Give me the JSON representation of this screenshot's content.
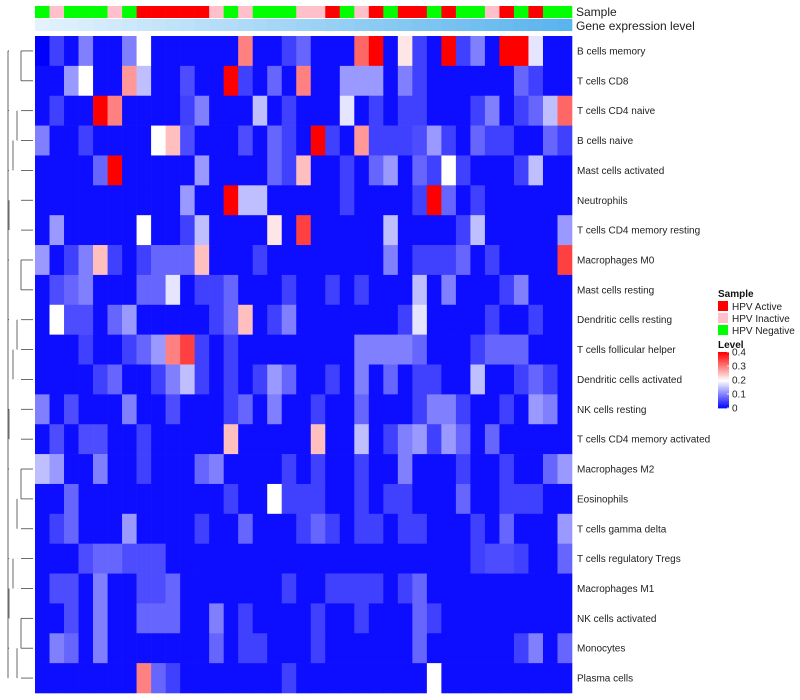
{
  "chart_data": {
    "type": "heatmap",
    "title": "",
    "annotation_tracks": [
      "Sample",
      "Gene expression level"
    ],
    "rows": [
      "B cells memory",
      "T cells CD8",
      "T cells CD4 naive",
      "B cells naive",
      "Mast cells activated",
      "Neutrophils",
      "T cells CD4 memory resting",
      "Macrophages M0",
      "Mast cells resting",
      "Dendritic cells resting",
      "T cells follicular helper",
      "Dendritic cells activated",
      "NK cells resting",
      "T cells CD4 memory activated",
      "Macrophages M2",
      "Eosinophils",
      "T cells gamma delta",
      "T cells regulatory  Tregs",
      "Macrophages M1",
      "NK cells activated",
      "Monocytes",
      "Plasma cells"
    ],
    "sample_groups": [
      "HPV Negative",
      "HPV Inactive",
      "HPV Negative",
      "HPV Negative",
      "HPV Negative",
      "HPV Inactive",
      "HPV Negative",
      "HPV Active",
      "HPV Active",
      "HPV Active",
      "HPV Active",
      "HPV Active",
      "HPV Inactive",
      "HPV Negative",
      "HPV Inactive",
      "HPV Negative",
      "HPV Negative",
      "HPV Negative",
      "HPV Inactive",
      "HPV Inactive",
      "HPV Active",
      "HPV Negative",
      "HPV Inactive",
      "HPV Active",
      "HPV Negative",
      "HPV Active",
      "HPV Active",
      "HPV Negative",
      "HPV Active",
      "HPV Negative",
      "HPV Negative",
      "HPV Inactive",
      "HPV Active",
      "HPV Negative",
      "HPV Active",
      "HPV Negative",
      "HPV Negative"
    ],
    "expression_gradient": [
      "#e3f2fd",
      "#5ab4ee"
    ],
    "values": [
      [
        0.0,
        0.05,
        0.01,
        0.1,
        0.01,
        0.01,
        0.1,
        0.2,
        0.01,
        0.01,
        0.01,
        0.01,
        0.01,
        0.01,
        0.3,
        0.01,
        0.01,
        0.05,
        0.08,
        0.01,
        0.01,
        0.01,
        0.32,
        0.4,
        0.01,
        0.22,
        0.05,
        0.01,
        0.4,
        0.05,
        0.1,
        0.01,
        0.4,
        0.4,
        0.18,
        0.01,
        0.01
      ],
      [
        0.01,
        0.01,
        0.12,
        0.2,
        0.01,
        0.01,
        0.28,
        0.15,
        0.01,
        0.01,
        0.06,
        0.01,
        0.01,
        0.4,
        0.05,
        0.01,
        0.08,
        0.01,
        0.3,
        0.01,
        0.01,
        0.12,
        0.12,
        0.12,
        0.01,
        0.1,
        0.05,
        0.01,
        0.01,
        0.01,
        0.01,
        0.01,
        0.01,
        0.08,
        0.05,
        0.01,
        0.01
      ],
      [
        0.01,
        0.05,
        0.01,
        0.01,
        0.4,
        0.3,
        0.01,
        0.01,
        0.01,
        0.01,
        0.05,
        0.1,
        0.01,
        0.01,
        0.01,
        0.15,
        0.01,
        0.05,
        0.01,
        0.01,
        0.01,
        0.18,
        0.01,
        0.05,
        0.01,
        0.05,
        0.05,
        0.01,
        0.01,
        0.01,
        0.05,
        0.1,
        0.01,
        0.05,
        0.08,
        0.15,
        0.32
      ],
      [
        0.1,
        0.01,
        0.01,
        0.05,
        0.01,
        0.01,
        0.01,
        0.01,
        0.2,
        0.25,
        0.06,
        0.01,
        0.01,
        0.01,
        0.06,
        0.01,
        0.08,
        0.05,
        0.01,
        0.4,
        0.05,
        0.01,
        0.28,
        0.05,
        0.05,
        0.05,
        0.06,
        0.12,
        0.05,
        0.01,
        0.08,
        0.05,
        0.05,
        0.01,
        0.01,
        0.08,
        0.05
      ],
      [
        0.01,
        0.01,
        0.01,
        0.01,
        0.08,
        0.4,
        0.01,
        0.01,
        0.01,
        0.01,
        0.01,
        0.12,
        0.01,
        0.01,
        0.01,
        0.01,
        0.08,
        0.05,
        0.25,
        0.01,
        0.01,
        0.05,
        0.01,
        0.08,
        0.12,
        0.01,
        0.08,
        0.05,
        0.2,
        0.05,
        0.01,
        0.01,
        0.01,
        0.05,
        0.15,
        0.01,
        0.01
      ],
      [
        0.01,
        0.01,
        0.01,
        0.01,
        0.01,
        0.01,
        0.01,
        0.01,
        0.01,
        0.01,
        0.12,
        0.01,
        0.01,
        0.4,
        0.15,
        0.15,
        0.01,
        0.01,
        0.01,
        0.01,
        0.01,
        0.05,
        0.01,
        0.01,
        0.01,
        0.01,
        0.05,
        0.4,
        0.08,
        0.01,
        0.05,
        0.01,
        0.01,
        0.01,
        0.01,
        0.01,
        0.01
      ],
      [
        0.01,
        0.12,
        0.01,
        0.01,
        0.01,
        0.01,
        0.01,
        0.2,
        0.01,
        0.01,
        0.05,
        0.15,
        0.01,
        0.01,
        0.01,
        0.01,
        0.22,
        0.01,
        0.35,
        0.01,
        0.01,
        0.01,
        0.01,
        0.01,
        0.15,
        0.01,
        0.01,
        0.01,
        0.01,
        0.05,
        0.15,
        0.01,
        0.01,
        0.01,
        0.01,
        0.01,
        0.12
      ],
      [
        0.12,
        0.01,
        0.05,
        0.1,
        0.25,
        0.05,
        0.01,
        0.05,
        0.08,
        0.08,
        0.08,
        0.25,
        0.01,
        0.01,
        0.01,
        0.05,
        0.01,
        0.01,
        0.01,
        0.01,
        0.01,
        0.01,
        0.01,
        0.01,
        0.1,
        0.01,
        0.05,
        0.05,
        0.05,
        0.08,
        0.01,
        0.05,
        0.01,
        0.01,
        0.01,
        0.01,
        0.35
      ],
      [
        0.01,
        0.06,
        0.08,
        0.1,
        0.01,
        0.01,
        0.01,
        0.08,
        0.08,
        0.18,
        0.01,
        0.05,
        0.05,
        0.08,
        0.01,
        0.01,
        0.01,
        0.05,
        0.01,
        0.01,
        0.05,
        0.01,
        0.05,
        0.01,
        0.01,
        0.01,
        0.15,
        0.01,
        0.1,
        0.01,
        0.01,
        0.01,
        0.05,
        0.1,
        0.01,
        0.01,
        0.01
      ],
      [
        0.01,
        0.2,
        0.06,
        0.06,
        0.01,
        0.08,
        0.12,
        0.01,
        0.01,
        0.01,
        0.01,
        0.01,
        0.05,
        0.08,
        0.25,
        0.01,
        0.05,
        0.1,
        0.01,
        0.01,
        0.01,
        0.01,
        0.01,
        0.01,
        0.01,
        0.05,
        0.18,
        0.01,
        0.01,
        0.01,
        0.01,
        0.05,
        0.01,
        0.01,
        0.05,
        0.01,
        0.01
      ],
      [
        0.01,
        0.01,
        0.01,
        0.05,
        0.01,
        0.01,
        0.05,
        0.08,
        0.12,
        0.3,
        0.35,
        0.05,
        0.01,
        0.05,
        0.01,
        0.01,
        0.01,
        0.01,
        0.01,
        0.01,
        0.01,
        0.01,
        0.1,
        0.1,
        0.1,
        0.1,
        0.08,
        0.01,
        0.01,
        0.01,
        0.05,
        0.08,
        0.08,
        0.08,
        0.01,
        0.01,
        0.01
      ],
      [
        0.01,
        0.01,
        0.01,
        0.01,
        0.05,
        0.08,
        0.01,
        0.01,
        0.05,
        0.1,
        0.15,
        0.05,
        0.01,
        0.05,
        0.01,
        0.05,
        0.12,
        0.08,
        0.01,
        0.01,
        0.05,
        0.01,
        0.1,
        0.01,
        0.08,
        0.01,
        0.05,
        0.05,
        0.01,
        0.01,
        0.15,
        0.01,
        0.01,
        0.05,
        0.08,
        0.05,
        0.01
      ],
      [
        0.1,
        0.01,
        0.06,
        0.01,
        0.01,
        0.01,
        0.1,
        0.01,
        0.01,
        0.06,
        0.01,
        0.01,
        0.01,
        0.05,
        0.08,
        0.01,
        0.1,
        0.01,
        0.01,
        0.05,
        0.01,
        0.01,
        0.08,
        0.01,
        0.01,
        0.01,
        0.05,
        0.1,
        0.1,
        0.05,
        0.01,
        0.01,
        0.05,
        0.01,
        0.12,
        0.1,
        0.01
      ],
      [
        0.01,
        0.06,
        0.01,
        0.06,
        0.06,
        0.01,
        0.01,
        0.05,
        0.01,
        0.01,
        0.01,
        0.01,
        0.01,
        0.25,
        0.01,
        0.01,
        0.01,
        0.01,
        0.01,
        0.25,
        0.01,
        0.01,
        0.15,
        0.01,
        0.05,
        0.1,
        0.12,
        0.05,
        0.12,
        0.08,
        0.01,
        0.08,
        0.01,
        0.01,
        0.01,
        0.01,
        0.01
      ],
      [
        0.15,
        0.12,
        0.01,
        0.01,
        0.1,
        0.01,
        0.01,
        0.05,
        0.01,
        0.01,
        0.01,
        0.08,
        0.1,
        0.01,
        0.01,
        0.01,
        0.01,
        0.05,
        0.01,
        0.05,
        0.01,
        0.01,
        0.05,
        0.01,
        0.01,
        0.1,
        0.01,
        0.01,
        0.01,
        0.05,
        0.01,
        0.01,
        0.05,
        0.01,
        0.01,
        0.08,
        0.12
      ],
      [
        0.01,
        0.01,
        0.08,
        0.01,
        0.01,
        0.01,
        0.01,
        0.01,
        0.01,
        0.01,
        0.01,
        0.01,
        0.01,
        0.05,
        0.01,
        0.01,
        0.2,
        0.05,
        0.05,
        0.05,
        0.01,
        0.01,
        0.05,
        0.01,
        0.05,
        0.05,
        0.01,
        0.01,
        0.01,
        0.08,
        0.01,
        0.01,
        0.05,
        0.05,
        0.05,
        0.01,
        0.01
      ],
      [
        0.01,
        0.05,
        0.08,
        0.01,
        0.01,
        0.01,
        0.12,
        0.01,
        0.01,
        0.01,
        0.01,
        0.05,
        0.01,
        0.01,
        0.08,
        0.01,
        0.01,
        0.01,
        0.05,
        0.08,
        0.05,
        0.01,
        0.05,
        0.05,
        0.01,
        0.05,
        0.05,
        0.01,
        0.01,
        0.01,
        0.05,
        0.01,
        0.08,
        0.01,
        0.01,
        0.01,
        0.12
      ],
      [
        0.01,
        0.01,
        0.01,
        0.06,
        0.08,
        0.08,
        0.06,
        0.06,
        0.06,
        0.01,
        0.01,
        0.01,
        0.01,
        0.01,
        0.01,
        0.01,
        0.01,
        0.01,
        0.01,
        0.01,
        0.01,
        0.01,
        0.01,
        0.01,
        0.01,
        0.01,
        0.01,
        0.01,
        0.01,
        0.01,
        0.05,
        0.06,
        0.06,
        0.05,
        0.01,
        0.01,
        0.08
      ],
      [
        0.01,
        0.06,
        0.06,
        0.01,
        0.1,
        0.01,
        0.01,
        0.06,
        0.06,
        0.08,
        0.01,
        0.01,
        0.01,
        0.01,
        0.01,
        0.01,
        0.01,
        0.05,
        0.01,
        0.01,
        0.05,
        0.05,
        0.05,
        0.05,
        0.01,
        0.05,
        0.08,
        0.01,
        0.01,
        0.01,
        0.01,
        0.01,
        0.01,
        0.01,
        0.01,
        0.01,
        0.01
      ],
      [
        0.01,
        0.01,
        0.06,
        0.01,
        0.1,
        0.01,
        0.01,
        0.08,
        0.08,
        0.08,
        0.01,
        0.01,
        0.1,
        0.01,
        0.05,
        0.01,
        0.01,
        0.01,
        0.01,
        0.05,
        0.01,
        0.01,
        0.05,
        0.01,
        0.01,
        0.01,
        0.08,
        0.05,
        0.01,
        0.01,
        0.01,
        0.01,
        0.01,
        0.01,
        0.01,
        0.01,
        0.01
      ],
      [
        0.01,
        0.1,
        0.08,
        0.01,
        0.1,
        0.01,
        0.01,
        0.01,
        0.01,
        0.01,
        0.01,
        0.01,
        0.08,
        0.01,
        0.05,
        0.05,
        0.01,
        0.01,
        0.01,
        0.05,
        0.01,
        0.01,
        0.01,
        0.01,
        0.01,
        0.01,
        0.08,
        0.01,
        0.01,
        0.01,
        0.01,
        0.01,
        0.01,
        0.05,
        0.1,
        0.01,
        0.08
      ],
      [
        0.01,
        0.01,
        0.01,
        0.01,
        0.01,
        0.01,
        0.01,
        0.3,
        0.08,
        0.05,
        0.01,
        0.01,
        0.01,
        0.01,
        0.01,
        0.01,
        0.01,
        0.05,
        0.01,
        0.01,
        0.01,
        0.01,
        0.01,
        0.01,
        0.01,
        0.01,
        0.01,
        0.2,
        0.01,
        0.01,
        0.01,
        0.01,
        0.01,
        0.01,
        0.01,
        0.01,
        0.01
      ]
    ],
    "row_dendrogram": [
      [
        3,
        4
      ],
      [
        2,
        3.5
      ],
      [
        15,
        16
      ],
      [
        17,
        18
      ],
      [
        19,
        20
      ],
      [
        12,
        13
      ],
      [
        9,
        10
      ],
      [
        7,
        8
      ],
      [
        0,
        1
      ],
      [
        5,
        6
      ]
    ],
    "legend": {
      "sample_title": "Sample",
      "sample_entries": [
        {
          "label": "HPV Active",
          "color": "#ff0000"
        },
        {
          "label": "HPV Inactive",
          "color": "#ffc0cb"
        },
        {
          "label": "HPV Negative",
          "color": "#00ff00"
        }
      ],
      "level_title": "Level",
      "level_ticks": [
        0,
        0.1,
        0.2,
        0.3,
        0.4
      ],
      "level_tick_labels": [
        "0",
        "0.1",
        "0.2",
        "0.3",
        "0.4"
      ],
      "level_range": [
        0,
        0.4
      ]
    },
    "colors": {
      "low": "#0000ff",
      "mid": "#ffffff",
      "high": "#ff0000",
      "mid_value": 0.2
    }
  }
}
